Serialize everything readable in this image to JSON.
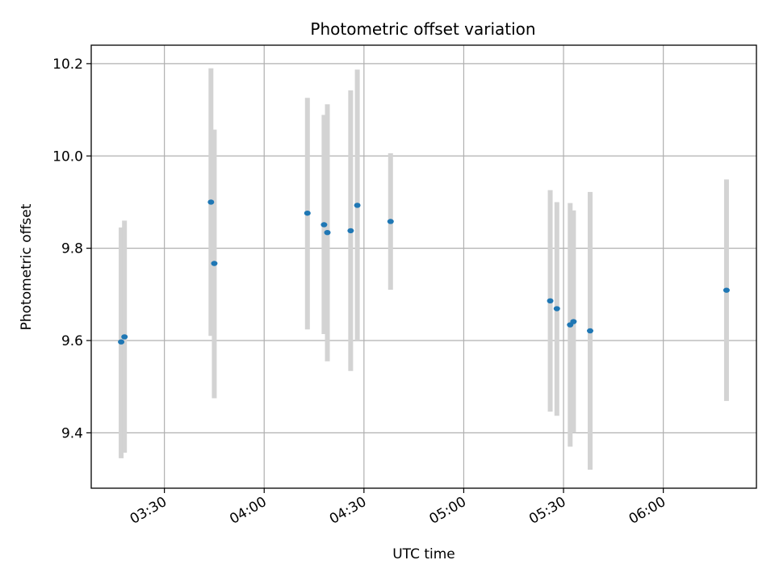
{
  "chart_data": {
    "type": "scatter",
    "title": "Photometric offset variation",
    "xlabel": "UTC time",
    "ylabel": "Photometric offset",
    "x_ticks": [
      "03:30",
      "04:00",
      "04:30",
      "05:00",
      "05:30",
      "06:00"
    ],
    "y_ticks": [
      "9.4",
      "9.6",
      "9.8",
      "10.0",
      "10.2"
    ],
    "xlim": [
      "03:08",
      "06:28"
    ],
    "ylim": [
      9.28,
      10.24
    ],
    "grid": true,
    "point_color": "#1f77b4",
    "errorbar_color": "#d3d3d3",
    "points": [
      {
        "t": "03:17",
        "y": 9.597,
        "low": 9.345,
        "high": 9.845
      },
      {
        "t": "03:18",
        "y": 9.608,
        "low": 9.357,
        "high": 9.86
      },
      {
        "t": "03:44",
        "y": 9.9,
        "low": 9.61,
        "high": 10.19
      },
      {
        "t": "03:45",
        "y": 9.767,
        "low": 9.475,
        "high": 10.057
      },
      {
        "t": "04:13",
        "y": 9.876,
        "low": 9.624,
        "high": 10.126
      },
      {
        "t": "04:18",
        "y": 9.851,
        "low": 9.614,
        "high": 10.089
      },
      {
        "t": "04:19",
        "y": 9.834,
        "low": 9.555,
        "high": 10.112
      },
      {
        "t": "04:26",
        "y": 9.838,
        "low": 9.534,
        "high": 10.142
      },
      {
        "t": "04:28",
        "y": 9.893,
        "low": 9.6,
        "high": 10.187
      },
      {
        "t": "04:38",
        "y": 9.858,
        "low": 9.71,
        "high": 10.006
      },
      {
        "t": "05:26",
        "y": 9.686,
        "low": 9.446,
        "high": 9.926
      },
      {
        "t": "05:28",
        "y": 9.669,
        "low": 9.437,
        "high": 9.9
      },
      {
        "t": "05:32",
        "y": 9.634,
        "low": 9.37,
        "high": 9.898
      },
      {
        "t": "05:33",
        "y": 9.641,
        "low": 9.4,
        "high": 9.882
      },
      {
        "t": "05:38",
        "y": 9.621,
        "low": 9.32,
        "high": 9.922
      },
      {
        "t": "06:19",
        "y": 9.709,
        "low": 9.469,
        "high": 9.949
      }
    ]
  }
}
